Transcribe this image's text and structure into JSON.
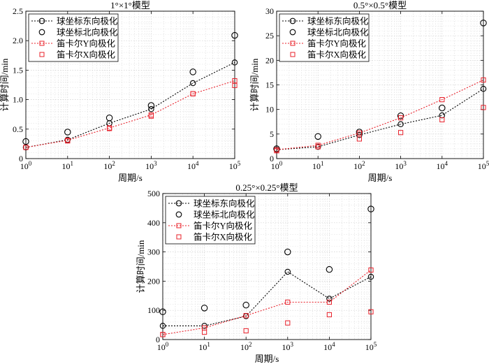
{
  "chart_data": [
    {
      "id": "p1",
      "type": "line",
      "title": "1°×1°模型",
      "xlabel": "周期/s",
      "ylabel": "计算时间/min",
      "xscale": "log",
      "xlim": [
        1,
        100000
      ],
      "ylim": [
        0,
        2.5
      ],
      "x_tick_labels": [
        "10^0",
        "10^1",
        "10^2",
        "10^3",
        "10^4",
        "10^5"
      ],
      "y_ticks": [
        0,
        0.5,
        1.0,
        1.5,
        2.0,
        2.5
      ],
      "y_tick_labels": [
        "0",
        "0.5",
        "1.0",
        "1.5",
        "2.0",
        "2.5"
      ],
      "grid": true,
      "legend_position": "top-left",
      "x": [
        1,
        10,
        100,
        1000,
        10000,
        100000
      ],
      "series": [
        {
          "name": "球坐标东向极化",
          "style": "dotted-line-circle",
          "color": "#000000",
          "values": [
            0.19,
            0.32,
            0.6,
            0.84,
            1.28,
            1.63
          ]
        },
        {
          "name": "球坐标北向极化",
          "style": "circle",
          "color": "#000000",
          "values": [
            0.29,
            0.45,
            0.69,
            0.9,
            1.47,
            2.09
          ]
        },
        {
          "name": "笛卡尔Y向极化",
          "style": "dotted-line-square",
          "color": "#e8202a",
          "values": [
            0.19,
            0.31,
            0.52,
            0.74,
            1.1,
            1.32
          ]
        },
        {
          "name": "笛卡尔X向极化",
          "style": "square",
          "color": "#e8202a",
          "values": [
            0.19,
            0.3,
            0.51,
            0.72,
            1.1,
            1.24
          ]
        }
      ]
    },
    {
      "id": "p2",
      "type": "line",
      "title": "0.5°×0.5°模型",
      "xlabel": "周期/s",
      "ylabel": "计算时间/min",
      "xscale": "log",
      "xlim": [
        1,
        100000
      ],
      "ylim": [
        0,
        30
      ],
      "x_tick_labels": [
        "10^0",
        "10^1",
        "10^2",
        "10^3",
        "10^4",
        "10^5"
      ],
      "y_ticks": [
        0,
        5,
        10,
        15,
        20,
        25,
        30
      ],
      "y_tick_labels": [
        "0",
        "5",
        "10",
        "15",
        "20",
        "25",
        "30"
      ],
      "grid": true,
      "legend_position": "top-left",
      "x": [
        1,
        10,
        100,
        1000,
        10000,
        100000
      ],
      "series": [
        {
          "name": "球坐标东向极化",
          "style": "dotted-line-circle",
          "color": "#000000",
          "values": [
            1.8,
            2.4,
            4.8,
            7.0,
            8.8,
            14.2
          ]
        },
        {
          "name": "球坐标北向极化",
          "style": "circle",
          "color": "#000000",
          "values": [
            2.0,
            4.5,
            5.4,
            8.7,
            10.3,
            27.6
          ]
        },
        {
          "name": "笛卡尔Y向极化",
          "style": "dotted-line-square",
          "color": "#e8202a",
          "values": [
            1.8,
            2.7,
            5.2,
            8.3,
            12.0,
            16.0
          ]
        },
        {
          "name": "笛卡尔X向极化",
          "style": "square",
          "color": "#e8202a",
          "values": [
            1.6,
            2.4,
            4.0,
            5.3,
            7.9,
            10.4
          ]
        }
      ]
    },
    {
      "id": "p3",
      "type": "line",
      "title": "0.25°×0.25°模型",
      "xlabel": "周期/s",
      "ylabel": "计算时间/min",
      "xscale": "log",
      "xlim": [
        1,
        100000
      ],
      "ylim": [
        0,
        500
      ],
      "x_tick_labels": [
        "10^0",
        "10^1",
        "10^2",
        "10^3",
        "10^4",
        "10^5"
      ],
      "y_ticks": [
        0,
        100,
        200,
        300,
        400,
        500
      ],
      "y_tick_labels": [
        "0",
        "100",
        "200",
        "300",
        "400",
        "500"
      ],
      "grid": true,
      "legend_position": "top-left",
      "x": [
        1,
        10,
        100,
        1000,
        10000,
        100000
      ],
      "series": [
        {
          "name": "球坐标东向极化",
          "style": "dotted-line-circle",
          "color": "#000000",
          "values": [
            47,
            47,
            80,
            232,
            140,
            215
          ]
        },
        {
          "name": "球坐标北向极化",
          "style": "circle",
          "color": "#000000",
          "values": [
            95,
            108,
            118,
            300,
            240,
            447
          ]
        },
        {
          "name": "笛卡尔Y向极化",
          "style": "dotted-line-square",
          "color": "#e8202a",
          "values": [
            17,
            40,
            82,
            128,
            128,
            238
          ]
        },
        {
          "name": "笛卡尔X向极化",
          "style": "square",
          "color": "#e8202a",
          "values": [
            17,
            25,
            30,
            57,
            85,
            95
          ]
        }
      ]
    }
  ]
}
